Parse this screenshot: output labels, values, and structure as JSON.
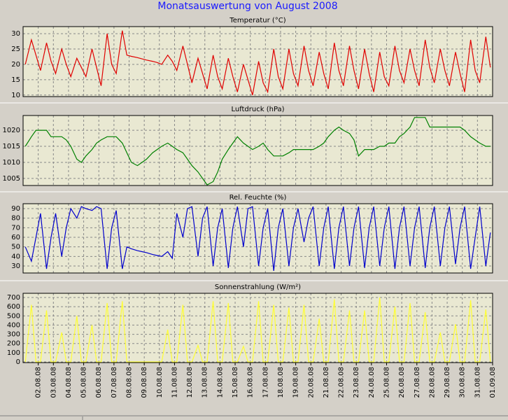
{
  "chart_data": [
    {
      "type": "line",
      "title": "Monatsauswertung von August 2008",
      "subtitle": "Temperatur (°C)",
      "color": "#e00000",
      "x": [
        1.15,
        1.55,
        1.85,
        2.15,
        2.55,
        2.85,
        3.15,
        3.55,
        3.85,
        4.15,
        4.55,
        4.85,
        5.15,
        5.55,
        5.85,
        6.15,
        6.55,
        6.85,
        7.15,
        7.55,
        7.85,
        8.15,
        8.55,
        8.85,
        9.15,
        9.55,
        9.85,
        10.15,
        10.55,
        10.85,
        11.15,
        11.55,
        11.85,
        12.15,
        12.55,
        12.85,
        13.15,
        13.55,
        13.85,
        14.15,
        14.55,
        14.85,
        15.15,
        15.55,
        15.85,
        16.15,
        16.55,
        16.85,
        17.15,
        17.55,
        17.85,
        18.15,
        18.55,
        18.85,
        19.15,
        19.55,
        19.85,
        20.15,
        20.55,
        20.85,
        21.15,
        21.55,
        21.85,
        22.15,
        22.55,
        22.85,
        23.15,
        23.55,
        23.85,
        24.15,
        24.55,
        24.85,
        25.15,
        25.55,
        25.85,
        26.15,
        26.55,
        26.85,
        27.15,
        27.55,
        27.85,
        28.15,
        28.55,
        28.85,
        29.15,
        29.55,
        29.85,
        30.15,
        30.55,
        30.85,
        31.15,
        31.55,
        31.85
      ],
      "values": [
        20,
        28,
        23,
        18,
        27,
        21,
        17,
        25,
        20,
        16,
        22,
        19,
        16,
        25,
        19,
        13,
        30,
        20,
        17,
        31,
        23,
        22.6,
        22.2,
        21.8,
        21.4,
        21,
        20.6,
        20,
        23,
        21,
        18,
        26,
        20,
        14,
        22,
        17,
        12,
        23,
        16,
        12,
        22,
        16,
        11,
        20,
        15,
        10,
        21,
        14,
        11,
        25,
        16,
        12,
        25,
        17,
        13,
        26,
        18,
        13,
        24,
        17,
        12,
        27,
        18,
        13,
        26,
        18,
        12,
        25,
        17,
        11,
        24,
        16,
        13,
        26,
        18,
        14,
        25,
        18,
        13,
        28,
        19,
        14,
        25,
        18,
        13,
        24,
        17,
        11,
        28,
        18,
        14,
        29,
        19
      ],
      "xlim": [
        1,
        32
      ],
      "xticks": [
        2,
        3,
        4,
        5,
        6,
        7,
        8,
        9,
        10,
        11,
        12,
        13,
        14,
        15,
        16,
        17,
        18,
        19,
        20,
        21,
        22,
        23,
        24,
        25,
        26,
        27,
        28,
        29,
        30,
        31,
        32
      ],
      "ylim": [
        9.5,
        32.3
      ],
      "yticks": [
        10,
        15,
        20,
        25,
        30
      ],
      "grid": true
    },
    {
      "type": "line",
      "subtitle": "Luftdruck (hPa)",
      "color": "#008000",
      "x": [
        1.15,
        1.55,
        1.85,
        2.15,
        2.55,
        2.85,
        3.15,
        3.55,
        3.85,
        4.15,
        4.55,
        4.85,
        5.15,
        5.55,
        5.85,
        6.15,
        6.55,
        6.85,
        7.15,
        7.55,
        7.85,
        8.15,
        8.55,
        8.85,
        9.15,
        9.55,
        9.85,
        10.15,
        10.55,
        10.85,
        11.15,
        11.55,
        11.85,
        12.15,
        12.55,
        12.85,
        13.15,
        13.55,
        13.85,
        14.15,
        14.55,
        14.85,
        15.15,
        15.55,
        15.85,
        16.15,
        16.55,
        16.85,
        17.15,
        17.55,
        17.85,
        18.15,
        18.55,
        18.85,
        19.15,
        19.55,
        19.85,
        20.15,
        20.55,
        20.85,
        21.15,
        21.55,
        21.85,
        22.15,
        22.55,
        22.85,
        23.15,
        23.55,
        23.85,
        24.15,
        24.55,
        24.85,
        25.15,
        25.55,
        25.85,
        26.15,
        26.55,
        26.85,
        27.15,
        27.55,
        27.85,
        28.15,
        28.55,
        28.85,
        29.15,
        29.55,
        29.85,
        30.15,
        30.55,
        30.85,
        31.15,
        31.55,
        31.85
      ],
      "values": [
        1015,
        1018,
        1020,
        1020,
        1020,
        1018,
        1018,
        1018,
        1017,
        1015,
        1011,
        1010,
        1012,
        1014,
        1016,
        1017,
        1018,
        1018,
        1018,
        1016,
        1013,
        1010,
        1009,
        1010,
        1011,
        1013,
        1014,
        1015,
        1016,
        1015,
        1014,
        1013,
        1011,
        1009,
        1007,
        1005,
        1003,
        1004,
        1007,
        1011,
        1014,
        1016,
        1018,
        1016,
        1015,
        1014,
        1015,
        1016,
        1014,
        1012,
        1012,
        1012,
        1013,
        1014,
        1014,
        1014,
        1014,
        1014,
        1015,
        1016,
        1018,
        1020,
        1021,
        1020,
        1019,
        1017,
        1012,
        1014,
        1014,
        1014,
        1015,
        1015,
        1016,
        1016,
        1018,
        1019,
        1021,
        1024,
        1024,
        1024,
        1021,
        1021,
        1021,
        1021,
        1021,
        1021,
        1021,
        1020,
        1018,
        1017,
        1016,
        1015,
        1015
      ],
      "xlim": [
        1,
        32
      ],
      "xticks": [
        2,
        3,
        4,
        5,
        6,
        7,
        8,
        9,
        10,
        11,
        12,
        13,
        14,
        15,
        16,
        17,
        18,
        19,
        20,
        21,
        22,
        23,
        24,
        25,
        26,
        27,
        28,
        29,
        30,
        31,
        32
      ],
      "ylim": [
        1002.8,
        1024.6
      ],
      "yticks": [
        1005,
        1010,
        1015,
        1020
      ],
      "grid": true
    },
    {
      "type": "line",
      "subtitle": "Rel. Feuchte (%)",
      "color": "#0000cc",
      "x": [
        1.15,
        1.55,
        1.85,
        2.15,
        2.55,
        2.85,
        3.15,
        3.55,
        3.85,
        4.15,
        4.55,
        4.85,
        5.15,
        5.55,
        5.85,
        6.15,
        6.55,
        6.85,
        7.15,
        7.55,
        7.85,
        8.15,
        8.55,
        8.85,
        9.15,
        9.55,
        9.85,
        10.15,
        10.55,
        10.85,
        11.15,
        11.55,
        11.85,
        12.15,
        12.55,
        12.85,
        13.15,
        13.55,
        13.85,
        14.15,
        14.55,
        14.85,
        15.15,
        15.55,
        15.85,
        16.15,
        16.55,
        16.85,
        17.15,
        17.55,
        17.85,
        18.15,
        18.55,
        18.85,
        19.15,
        19.55,
        19.85,
        20.15,
        20.55,
        20.85,
        21.15,
        21.55,
        21.85,
        22.15,
        22.55,
        22.85,
        23.15,
        23.55,
        23.85,
        24.15,
        24.55,
        24.85,
        25.15,
        25.55,
        25.85,
        26.15,
        26.55,
        26.85,
        27.15,
        27.55,
        27.85,
        28.15,
        28.55,
        28.85,
        29.15,
        29.55,
        29.85,
        30.15,
        30.55,
        30.85,
        31.15,
        31.55,
        31.85
      ],
      "values": [
        50,
        35,
        60,
        85,
        27,
        60,
        85,
        40,
        70,
        90,
        80,
        92,
        90,
        88,
        92,
        90,
        27,
        70,
        88,
        27,
        50,
        48,
        46,
        45,
        44,
        42,
        41,
        40,
        45,
        38,
        85,
        60,
        90,
        92,
        40,
        80,
        92,
        30,
        70,
        90,
        28,
        70,
        92,
        50,
        90,
        92,
        30,
        70,
        90,
        25,
        70,
        90,
        30,
        70,
        90,
        55,
        80,
        92,
        30,
        70,
        92,
        27,
        70,
        92,
        30,
        70,
        92,
        28,
        70,
        92,
        30,
        70,
        92,
        27,
        70,
        92,
        30,
        70,
        92,
        28,
        70,
        92,
        30,
        70,
        92,
        32,
        70,
        92,
        27,
        60,
        92,
        30,
        65
      ],
      "xlim": [
        1,
        32
      ],
      "xticks": [
        2,
        3,
        4,
        5,
        6,
        7,
        8,
        9,
        10,
        11,
        12,
        13,
        14,
        15,
        16,
        17,
        18,
        19,
        20,
        21,
        22,
        23,
        24,
        25,
        26,
        27,
        28,
        29,
        30,
        31,
        32
      ],
      "ylim": [
        22.7,
        95.1
      ],
      "yticks": [
        30,
        40,
        50,
        60,
        70,
        80,
        90
      ],
      "grid": true
    },
    {
      "type": "line",
      "subtitle": "Sonnenstrahlung (W/m²)",
      "color": "#ffff33",
      "x": [
        1.15,
        1.55,
        1.85,
        2.15,
        2.55,
        2.85,
        3.15,
        3.55,
        3.85,
        4.15,
        4.55,
        4.85,
        5.15,
        5.55,
        5.85,
        6.15,
        6.55,
        6.85,
        7.15,
        7.55,
        7.85,
        8.15,
        8.55,
        8.85,
        9.15,
        9.55,
        9.85,
        10.15,
        10.55,
        10.85,
        11.15,
        11.55,
        11.85,
        12.15,
        12.55,
        12.85,
        13.15,
        13.55,
        13.85,
        14.15,
        14.55,
        14.85,
        15.15,
        15.55,
        15.85,
        16.15,
        16.55,
        16.85,
        17.15,
        17.55,
        17.85,
        18.15,
        18.55,
        18.85,
        19.15,
        19.55,
        19.85,
        20.15,
        20.55,
        20.85,
        21.15,
        21.55,
        21.85,
        22.15,
        22.55,
        22.85,
        23.15,
        23.55,
        23.85,
        24.15,
        24.55,
        24.85,
        25.15,
        25.55,
        25.85,
        26.15,
        26.55,
        26.85,
        27.15,
        27.55,
        27.85,
        28.15,
        28.55,
        28.85,
        29.15,
        29.55,
        29.85,
        30.15,
        30.55,
        30.85,
        31.15,
        31.55,
        31.85
      ],
      "values": [
        0,
        620,
        0,
        0,
        560,
        0,
        0,
        320,
        0,
        0,
        500,
        0,
        0,
        400,
        0,
        0,
        640,
        0,
        0,
        660,
        0,
        0,
        0,
        0,
        0,
        0,
        0,
        0,
        350,
        0,
        0,
        620,
        0,
        0,
        180,
        0,
        0,
        660,
        0,
        0,
        640,
        0,
        0,
        170,
        0,
        0,
        660,
        0,
        0,
        620,
        0,
        0,
        590,
        0,
        0,
        620,
        0,
        0,
        470,
        0,
        0,
        680,
        0,
        0,
        560,
        0,
        0,
        560,
        0,
        0,
        700,
        0,
        0,
        600,
        0,
        0,
        640,
        0,
        0,
        540,
        0,
        0,
        320,
        0,
        0,
        410,
        0,
        0,
        670,
        0,
        0,
        570,
        0
      ],
      "xlim": [
        1,
        32
      ],
      "xticks": [
        {
          "value": 2,
          "label": "02.08.08"
        },
        {
          "value": 3,
          "label": "03.08.08"
        },
        {
          "value": 4,
          "label": "04.08.08"
        },
        {
          "value": 5,
          "label": "05.08.08"
        },
        {
          "value": 6,
          "label": "06.08.08"
        },
        {
          "value": 7,
          "label": "07.08.08"
        },
        {
          "value": 8,
          "label": "08.08.08"
        },
        {
          "value": 9,
          "label": "09.08.08"
        },
        {
          "value": 10,
          "label": "10.08.08"
        },
        {
          "value": 11,
          "label": "11.08.08"
        },
        {
          "value": 12,
          "label": "12.08.08"
        },
        {
          "value": 13,
          "label": "13.08.08"
        },
        {
          "value": 14,
          "label": "14.08.08"
        },
        {
          "value": 15,
          "label": "15.08.08"
        },
        {
          "value": 16,
          "label": "16.08.08"
        },
        {
          "value": 17,
          "label": "17.08.08"
        },
        {
          "value": 18,
          "label": "18.08.08"
        },
        {
          "value": 19,
          "label": "19.08.08"
        },
        {
          "value": 20,
          "label": "20.08.08"
        },
        {
          "value": 21,
          "label": "21.08.08"
        },
        {
          "value": 22,
          "label": "22.08.08"
        },
        {
          "value": 23,
          "label": "23.08.08"
        },
        {
          "value": 24,
          "label": "24.08.08"
        },
        {
          "value": 25,
          "label": "25.08.08"
        },
        {
          "value": 26,
          "label": "26.08.08"
        },
        {
          "value": 27,
          "label": "27.08.08"
        },
        {
          "value": 28,
          "label": "28.08.08"
        },
        {
          "value": 29,
          "label": "29.08.08"
        },
        {
          "value": 30,
          "label": "30.08.08"
        },
        {
          "value": 31,
          "label": "31.08.08"
        },
        {
          "value": 32,
          "label": "01.09.08"
        }
      ],
      "ylim": [
        -7.6,
        745.7
      ],
      "yticks": [
        0,
        100,
        200,
        300,
        400,
        500,
        600,
        700
      ],
      "grid": true
    }
  ]
}
